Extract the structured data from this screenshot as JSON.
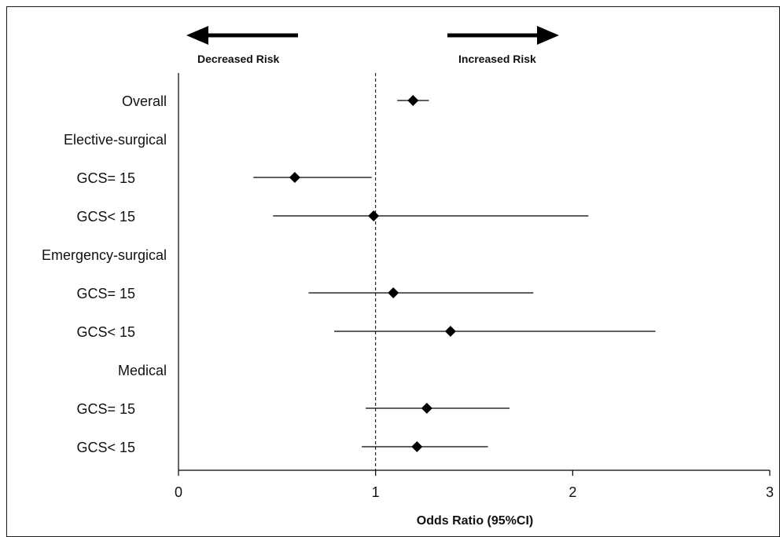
{
  "chart_data": {
    "type": "forest",
    "xlabel": "Odds Ratio (95%CI)",
    "xlim": [
      0,
      3
    ],
    "x_ticks": [
      0,
      1,
      2,
      3
    ],
    "reference_line": 1,
    "direction_labels": {
      "left": "Decreased Risk",
      "right": "Increased Risk"
    },
    "rows": [
      {
        "label": "Overall",
        "or": 1.19,
        "lower": 1.11,
        "upper": 1.27,
        "indent": false
      },
      {
        "label": "Elective-surgical",
        "or": null,
        "lower": null,
        "upper": null,
        "indent": false
      },
      {
        "label": "GCS= 15",
        "or": 0.59,
        "lower": 0.38,
        "upper": 0.98,
        "indent": true
      },
      {
        "label": "GCS< 15",
        "or": 0.99,
        "lower": 0.48,
        "upper": 2.08,
        "indent": true
      },
      {
        "label": "Emergency-surgical",
        "or": null,
        "lower": null,
        "upper": null,
        "indent": false
      },
      {
        "label": "GCS= 15",
        "or": 1.09,
        "lower": 0.66,
        "upper": 1.8,
        "indent": true
      },
      {
        "label": "GCS< 15",
        "or": 1.38,
        "lower": 0.79,
        "upper": 2.42,
        "indent": true
      },
      {
        "label": "Medical",
        "or": null,
        "lower": null,
        "upper": null,
        "indent": false
      },
      {
        "label": "GCS= 15",
        "or": 1.26,
        "lower": 0.95,
        "upper": 1.68,
        "indent": true
      },
      {
        "label": "GCS< 15",
        "or": 1.21,
        "lower": 0.93,
        "upper": 1.57,
        "indent": true
      }
    ],
    "marker": "diamond",
    "color": "#000000"
  }
}
